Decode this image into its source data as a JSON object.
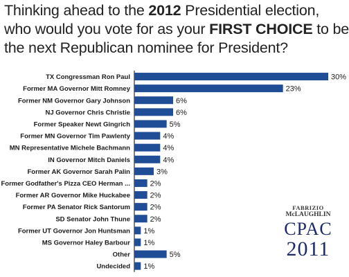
{
  "title": {
    "line1_pre": "Thinking ahead to the ",
    "line1_bold": "2012",
    "line1_post": " Presidential election,",
    "line2_pre": "who would you vote for as your ",
    "line2_bold": "FIRST CHOICE",
    "line2_post": " to be",
    "line3": "the next Republican nominee for President?"
  },
  "logo": {
    "line1": "FABRIZIO",
    "line2": "McLAUGHLIN",
    "line3": "CPAC",
    "line4": "2011"
  },
  "colors": {
    "bar": "#1f4e96"
  },
  "chart_data": {
    "type": "bar",
    "orientation": "horizontal",
    "categories": [
      "TX Congressman Ron Paul",
      "Former MA Governor Mitt Romney",
      "Former NM Governor Gary Johnson",
      "NJ Governor Chris Christie",
      "Former Speaker Newt Gingrich",
      "Former MN Governor Tim Pawlenty",
      "MN Representative Michele Bachmann",
      "IN Governor Mitch Daniels",
      "Former AK Governor Sarah Palin",
      "Former Godfather's Pizza CEO Herman ...",
      "Former AR Governor Mike Huckabee",
      "Former PA Senator Rick Santorum",
      "SD Senator John Thune",
      "Former UT Governor Jon Huntsman",
      "MS Governor Haley Barbour",
      "Other",
      "Undecided"
    ],
    "values": [
      30,
      23,
      6,
      6,
      5,
      4,
      4,
      4,
      3,
      2,
      2,
      2,
      2,
      1,
      1,
      5,
      1
    ],
    "value_labels": [
      "30%",
      "23%",
      "6%",
      "6%",
      "5%",
      "4%",
      "4%",
      "4%",
      "3%",
      "2%",
      "2%",
      "2%",
      "2%",
      "1%",
      "1%",
      "5%",
      "1%"
    ],
    "xlim": [
      0,
      30
    ],
    "grid": false,
    "legend": "none"
  }
}
